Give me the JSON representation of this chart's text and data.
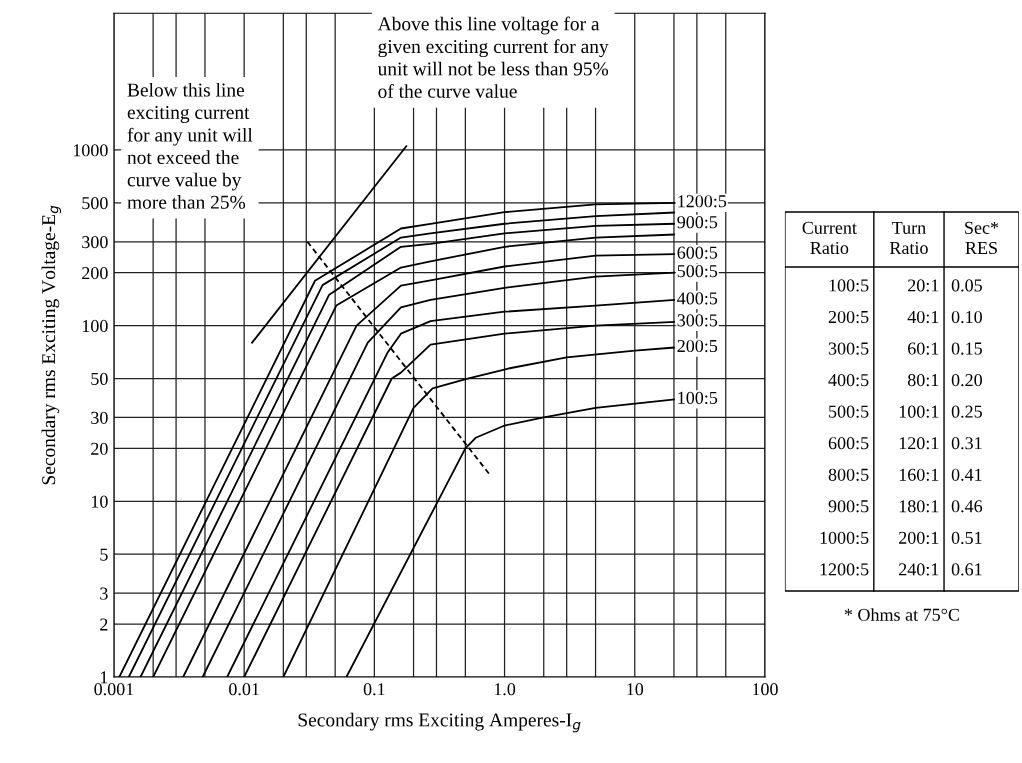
{
  "chart_data": [
    {
      "type": "line",
      "xlabel": "Secondary rms Exciting Amperes-I$_{g}$",
      "ylabel": "Secondary rms Exciting Voltage-E$_{g}$",
      "log": "xy",
      "xlim": [
        0.001,
        100
      ],
      "ylim": [
        1,
        6000
      ],
      "xticks": [
        0.001,
        {
          "value": 0.002,
          "label": null
        },
        {
          "value": 0.003,
          "label": null
        },
        {
          "value": 0.005,
          "label": null
        },
        0.01,
        {
          "value": 0.02,
          "label": null
        },
        {
          "value": 0.03,
          "label": null
        },
        {
          "value": 0.05,
          "label": null
        },
        0.1,
        {
          "value": 0.2,
          "label": null
        },
        {
          "value": 0.3,
          "label": null
        },
        {
          "value": 0.5,
          "label": null
        },
        {
          "value": 1,
          "label": "1.0"
        },
        {
          "value": 2,
          "label": null
        },
        {
          "value": 3,
          "label": null
        },
        {
          "value": 5,
          "label": null
        },
        10,
        {
          "value": 20,
          "label": null
        },
        {
          "value": 30,
          "label": null
        },
        {
          "value": 50,
          "label": null
        },
        100
      ],
      "yticks": [
        1,
        2,
        3,
        5,
        10,
        20,
        30,
        50,
        100,
        200,
        300,
        500,
        1000
      ],
      "grid": true,
      "legend": false,
      "marker": "none",
      "annotations": [
        "Below this line\nexciting current\nfor any unit will\nnot exceed the\ncurve value by\nmore than 25%",
        "Above this line voltage for a\ngiven exciting current for any\nunit will not be less than 95%\nof the curve value"
      ],
      "series": [
        {
          "name": "1200:5",
          "color": "#000000",
          "x": [
            0.0011,
            0.035,
            0.16,
            0.27,
            1,
            5,
            20
          ],
          "values": [
            1,
            180,
            357,
            379,
            442,
            490,
            500
          ]
        },
        {
          "color": "#000000",
          "x": [
            0.0013,
            0.04,
            0.16,
            0.27,
            1,
            5,
            20
          ],
          "values": [
            1,
            170,
            317,
            335,
            380,
            420,
            440
          ]
        },
        {
          "name": "900:5",
          "color": "#000000",
          "x": [
            0.0016,
            0.045,
            0.16,
            0.27,
            1,
            5,
            20
          ],
          "values": [
            1,
            150,
            281,
            292,
            335,
            370,
            380
          ]
        },
        {
          "color": "#000000",
          "x": [
            0.002,
            0.051,
            0.16,
            0.27,
            1,
            5,
            20
          ],
          "values": [
            1,
            130,
            214,
            232,
            281,
            317,
            330
          ]
        },
        {
          "name": "600:5",
          "color": "#000000",
          "x": [
            0.0034,
            0.073,
            0.16,
            0.27,
            1,
            5,
            20
          ],
          "values": [
            1,
            100,
            169,
            181,
            217,
            250,
            255
          ]
        },
        {
          "name": "500:5",
          "color": "#000000",
          "x": [
            0.0048,
            0.089,
            0.16,
            0.27,
            1,
            5,
            20
          ],
          "values": [
            1,
            80,
            127,
            140,
            164,
            190,
            200
          ]
        },
        {
          "name": "400:5",
          "color": "#000000",
          "x": [
            0.0074,
            0.126,
            0.16,
            0.27,
            1,
            5,
            20
          ],
          "values": [
            1,
            70,
            90,
            106,
            120,
            130,
            140
          ]
        },
        {
          "name": "300:5",
          "color": "#000000",
          "x": [
            0.01,
            0.136,
            0.16,
            0.27,
            1,
            5,
            20
          ],
          "values": [
            1,
            50,
            54,
            78,
            90,
            100,
            105
          ]
        },
        {
          "name": "200:5",
          "color": "#000000",
          "x": [
            0.02,
            0.2,
            0.28,
            0.52,
            1.07,
            3,
            10,
            20
          ],
          "values": [
            1,
            34,
            44,
            50,
            57,
            66,
            72,
            75
          ]
        },
        {
          "name": "100:5",
          "color": "#000000",
          "x": [
            0.061,
            0.5,
            0.6,
            1,
            2,
            5,
            20
          ],
          "values": [
            1,
            20,
            23,
            27,
            30,
            34,
            38
          ]
        },
        {
          "color": "#000000",
          "x": [
            0.0115,
            0.176
          ],
          "values": [
            80,
            1050
          ]
        },
        {
          "color": "#000000",
          "line_style": "dashed",
          "x": [
            0.0306,
            0.78
          ],
          "values": [
            300,
            14
          ]
        }
      ]
    },
    {
      "type": "other",
      "annotations": [
        "Current\nRatio",
        "Turn\nRatio",
        "Sec*\nRES",
        "100:5",
        "20:1",
        "0.05",
        "200:5",
        "40:1",
        "0.10",
        "300:5",
        "60:1",
        "0.15",
        "400:5",
        "80:1",
        "0.20",
        "500:5",
        "100:1",
        "0.25",
        "600:5",
        "120:1",
        "0.31",
        "800:5",
        "160:1",
        "0.41",
        "900:5",
        "180:1",
        "0.46",
        "1000:5",
        "200:1",
        "0.51",
        "1200:5",
        "240:1",
        "0.61",
        "* Ohms at 75°C"
      ]
    }
  ]
}
